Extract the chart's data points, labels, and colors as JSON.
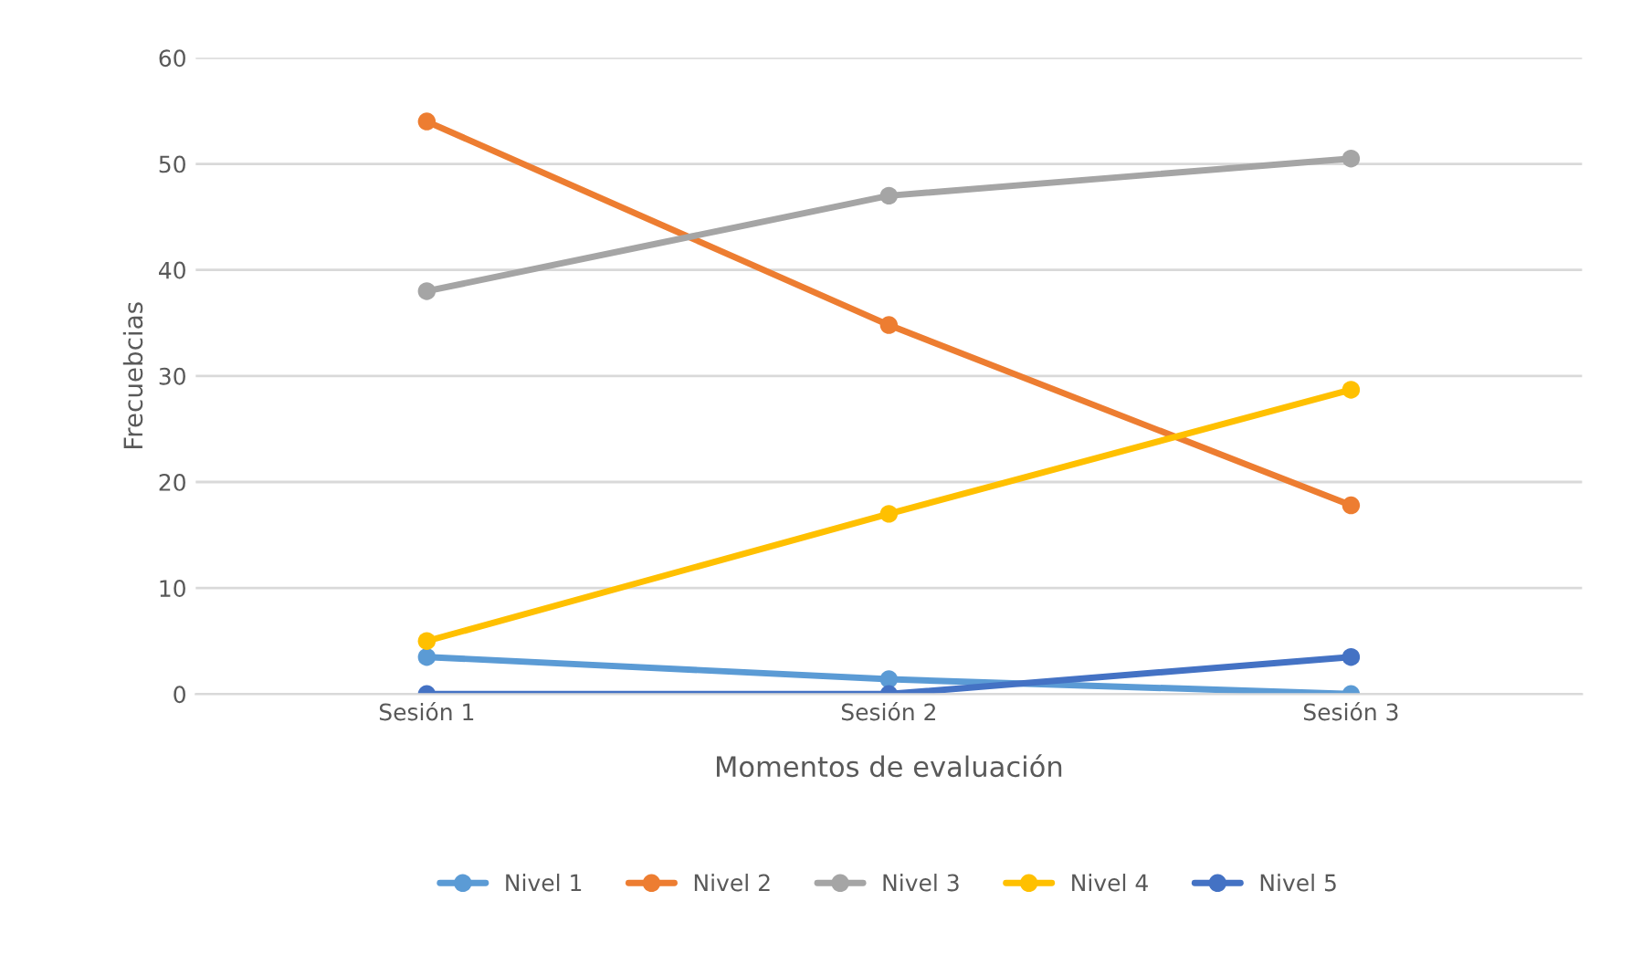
{
  "chart_data": {
    "type": "line",
    "xlabel": "Momentos de evaluación",
    "ylabel": "Frecuebcias",
    "categories": [
      "Sesión 1",
      "Sesión 2",
      "Sesión 3"
    ],
    "series": [
      {
        "name": "Nivel 1",
        "color": "#5b9bd5",
        "values": [
          3.5,
          1.4,
          0
        ]
      },
      {
        "name": "Nivel 2",
        "color": "#ed7d31",
        "values": [
          54,
          34.8,
          17.8
        ]
      },
      {
        "name": "Nivel 3",
        "color": "#a5a5a5",
        "values": [
          38,
          47,
          50.5
        ]
      },
      {
        "name": "Nivel 4",
        "color": "#ffc000",
        "values": [
          5,
          17,
          28.7
        ]
      },
      {
        "name": "Nivel 5",
        "color": "#4472c4",
        "values": [
          0,
          0,
          3.5
        ]
      }
    ],
    "ylim": [
      0,
      60
    ],
    "yticks": [
      0,
      10,
      20,
      30,
      40,
      50,
      60
    ],
    "grid": "y",
    "legend": "bottom",
    "marker": "circle",
    "line_style": "solid"
  }
}
